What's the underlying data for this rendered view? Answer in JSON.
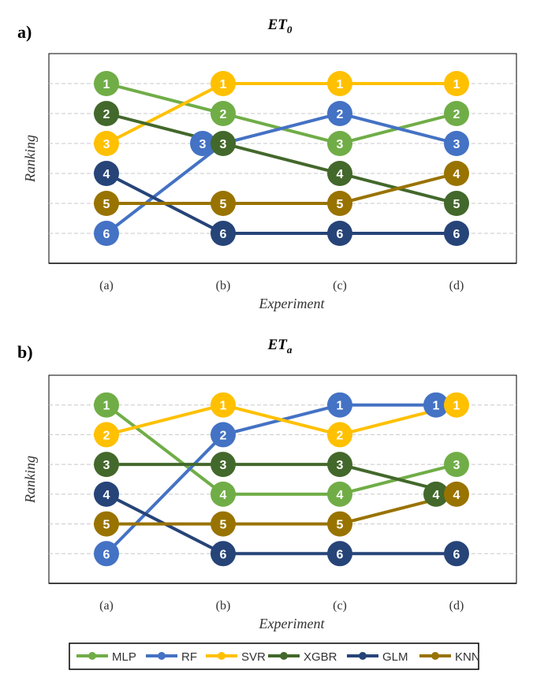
{
  "chart_data": [
    {
      "type": "line",
      "panel_label": "a)",
      "title": "ET0",
      "title_main": "ET",
      "title_sub": "0",
      "xlabel": "Experiment",
      "ylabel": "Ranking",
      "categories": [
        "(a)",
        "(b)",
        "(c)",
        "(d)"
      ],
      "ylim": [
        7,
        0
      ],
      "grid": true,
      "series": [
        {
          "name": "MLP",
          "values": [
            1,
            2,
            3,
            2
          ]
        },
        {
          "name": "RF",
          "values": [
            6,
            3,
            2,
            3
          ]
        },
        {
          "name": "SVR",
          "values": [
            3,
            1,
            1,
            1
          ]
        },
        {
          "name": "XGBR",
          "values": [
            2,
            3,
            4,
            5
          ]
        },
        {
          "name": "GLM",
          "values": [
            4,
            6,
            6,
            6
          ]
        },
        {
          "name": "KNN",
          "values": [
            5,
            5,
            5,
            4
          ]
        }
      ]
    },
    {
      "type": "line",
      "panel_label": "b)",
      "title": "ETa",
      "title_main": "ET",
      "title_sub": "a",
      "xlabel": "Experiment",
      "ylabel": "Ranking",
      "categories": [
        "(a)",
        "(b)",
        "(c)",
        "(d)"
      ],
      "ylim": [
        7,
        0
      ],
      "grid": true,
      "series": [
        {
          "name": "MLP",
          "values": [
            1,
            4,
            4,
            3
          ]
        },
        {
          "name": "RF",
          "values": [
            6,
            2,
            1,
            1
          ]
        },
        {
          "name": "SVR",
          "values": [
            2,
            1,
            2,
            1
          ]
        },
        {
          "name": "XGBR",
          "values": [
            3,
            3,
            3,
            4
          ]
        },
        {
          "name": "GLM",
          "values": [
            4,
            6,
            6,
            6
          ]
        },
        {
          "name": "KNN",
          "values": [
            5,
            5,
            5,
            4
          ]
        }
      ]
    }
  ],
  "legend": {
    "placement": "bottom",
    "items": [
      "MLP",
      "RF",
      "SVR",
      "XGBR",
      "GLM",
      "KNN"
    ]
  },
  "colors": {
    "MLP": "#70AD47",
    "RF": "#4472C4",
    "SVR": "#FFC000",
    "XGBR": "#43682B",
    "GLM": "#264478",
    "KNN": "#997300"
  }
}
